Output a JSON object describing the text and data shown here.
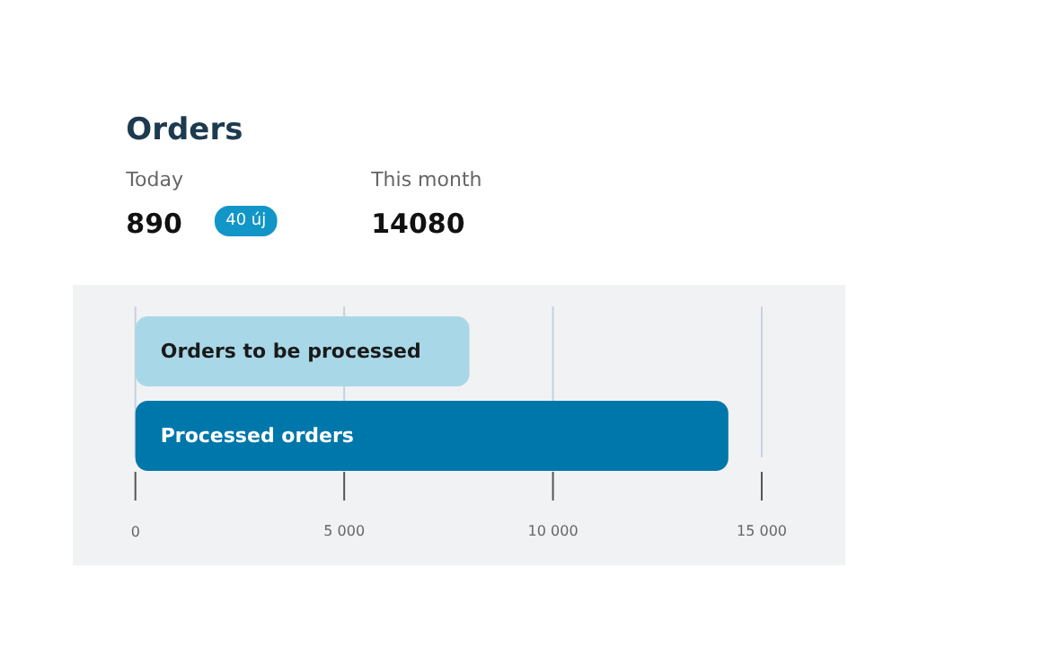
{
  "chart_data": {
    "type": "bar",
    "orientation": "horizontal",
    "title": "Orders",
    "annotations": [
      "Today",
      "890",
      "40 új",
      "This month",
      "14080"
    ],
    "categories": [
      "Orders to be processed",
      "Processed orders"
    ],
    "values": [
      8000,
      14200
    ],
    "colors": [
      "#a8d8e8",
      "#0077aa"
    ],
    "xlim": [
      -1500,
      17000
    ],
    "xticks": [
      0,
      {
        "value": 5000,
        "label": "5 000"
      },
      {
        "value": 10000,
        "label": "10 000"
      },
      {
        "value": 15000,
        "label": "15 000"
      }
    ],
    "grid": "x"
  }
}
